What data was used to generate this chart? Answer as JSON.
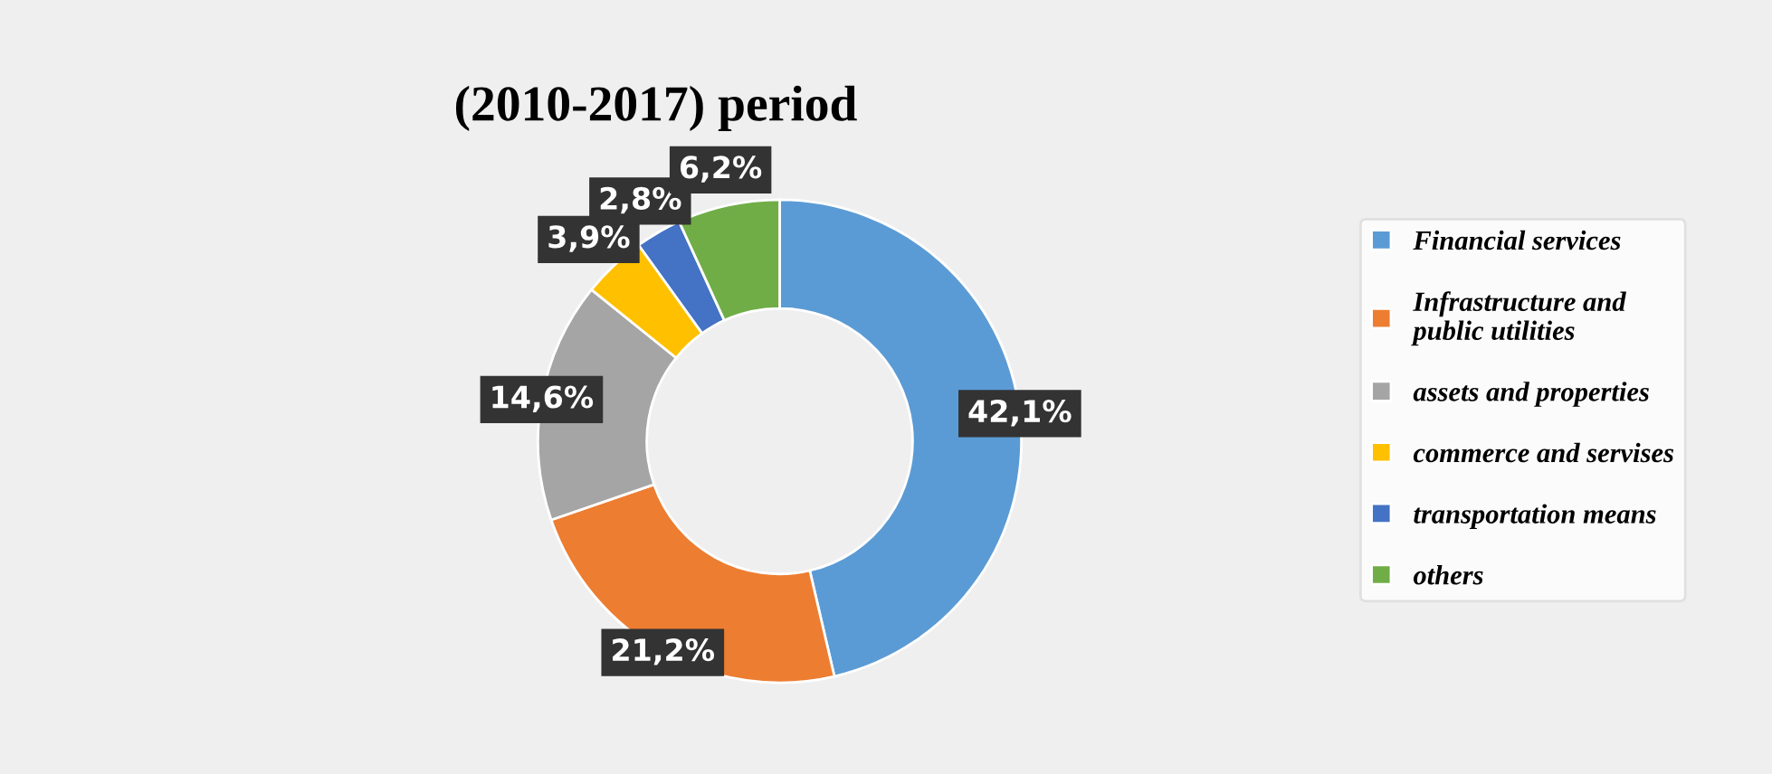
{
  "chart_data": {
    "type": "donut",
    "title": "(2010-2017) period",
    "categories": [
      "Financial services",
      "Infrastructure and\npublic utilities",
      "assets and properties",
      "commerce and servises",
      "transportation means",
      "others"
    ],
    "values": [
      42.1,
      21.2,
      14.6,
      3.9,
      2.8,
      6.2
    ],
    "value_labels": [
      "42,1%",
      "21,2%",
      "14,6%",
      "3,9%",
      "2,8%",
      "6,2%"
    ],
    "colors": [
      "#5b9bd5",
      "#ed7d31",
      "#a5a5a5",
      "#ffc000",
      "#4472c4",
      "#70ad47"
    ],
    "legend": "right"
  }
}
